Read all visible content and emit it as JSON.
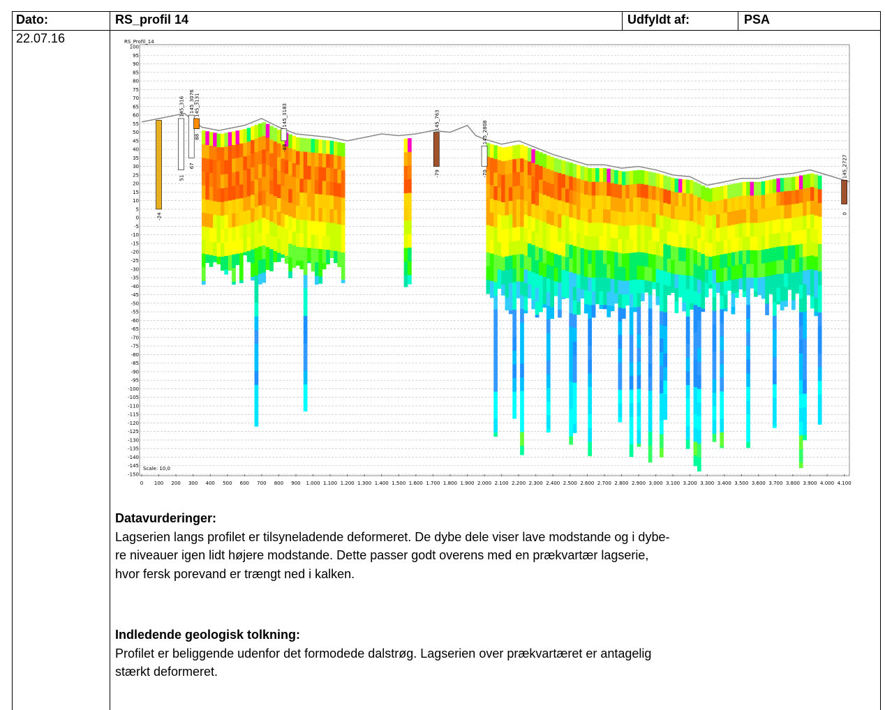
{
  "header": {
    "date_label": "Dato:",
    "profile": "RS_profil 14",
    "filled_by_label": "Udfyldt af:",
    "filled_by": "PSA"
  },
  "date": "22.07.16",
  "figure": {
    "title": "RS_Profil_14",
    "scale_label": "Scale: 10,0",
    "xlim": [
      0,
      4130
    ],
    "ylim": [
      -150,
      100
    ],
    "xticks": [
      0,
      100,
      200,
      300,
      400,
      500,
      600,
      700,
      800,
      900,
      {
        "value": 1000,
        "label": "1.000"
      },
      {
        "value": 1100,
        "label": "1.100"
      },
      {
        "value": 1200,
        "label": "1.200"
      },
      {
        "value": 1300,
        "label": "1.300"
      },
      {
        "value": 1400,
        "label": "1.400"
      },
      {
        "value": 1500,
        "label": "1.500"
      },
      {
        "value": 1600,
        "label": "1.600"
      },
      {
        "value": 1700,
        "label": "1.700"
      },
      {
        "value": 1800,
        "label": "1.800"
      },
      {
        "value": 1900,
        "label": "1.900"
      },
      {
        "value": 2000,
        "label": "2.000"
      },
      {
        "value": 2100,
        "label": "2.100"
      },
      {
        "value": 2200,
        "label": "2.200"
      },
      {
        "value": 2300,
        "label": "2.300"
      },
      {
        "value": 2400,
        "label": "2.400"
      },
      {
        "value": 2500,
        "label": "2.500"
      },
      {
        "value": 2600,
        "label": "2.600"
      },
      {
        "value": 2700,
        "label": "2.700"
      },
      {
        "value": 2800,
        "label": "2.800"
      },
      {
        "value": 2900,
        "label": "2.900"
      },
      {
        "value": 3000,
        "label": "3.000"
      },
      {
        "value": 3100,
        "label": "3.100"
      },
      {
        "value": 3200,
        "label": "3.200"
      },
      {
        "value": 3300,
        "label": "3.300"
      },
      {
        "value": 3400,
        "label": "3.400"
      },
      {
        "value": 3500,
        "label": "3.500"
      },
      {
        "value": 3600,
        "label": "3.600"
      },
      {
        "value": 3700,
        "label": "3.700"
      },
      {
        "value": 3800,
        "label": "3.800"
      },
      {
        "value": 3900,
        "label": "3.900"
      },
      {
        "value": 4000,
        "label": "4.000"
      },
      {
        "value": 4100,
        "label": "4.100"
      }
    ],
    "yticks": [
      100,
      95,
      90,
      85,
      80,
      75,
      70,
      65,
      60,
      55,
      50,
      45,
      40,
      35,
      30,
      25,
      20,
      15,
      10,
      5,
      0,
      -5,
      -10,
      -15,
      -20,
      -25,
      -30,
      -35,
      -40,
      -45,
      -50,
      -55,
      -60,
      -65,
      -70,
      -75,
      -80,
      -85,
      -90,
      -95,
      -100,
      -105,
      -110,
      -115,
      -120,
      -125,
      -130,
      -135,
      -140,
      -145,
      -150
    ],
    "boreholes": [
      {
        "depth_label": "-24"
      },
      {
        "label": "145_316",
        "depth_label": "51"
      },
      {
        "label": "145_3076",
        "depth_label": "67"
      },
      {
        "label": "145_3131",
        "depth_label": "88"
      },
      {
        "label": "145_3183",
        "depth_label": "-88"
      },
      {
        "label": "145_763",
        "depth_label": "-79"
      },
      {
        "label": "145_2808",
        "depth_label": "-70"
      },
      {
        "label": "145_2727",
        "depth_label": "0"
      }
    ]
  },
  "sections": [
    {
      "heading": "Datavurderinger:",
      "lines": [
        "Lagserien langs profilet er tilsyneladende deformeret. De dybe dele viser lave modstande og i dybe-",
        "re niveauer igen lidt højere modstande. Dette passer godt overens med en prækvartær lagserie,",
        "hvor fersk porevand er trængt ned i kalken."
      ]
    },
    {
      "heading": "Indledende geologisk tolkning:",
      "lines": [
        "Profilet er beliggende udenfor det formodede dalstrøg. Lagserien over prækvartæret er antagelig",
        "stærkt deformeret."
      ]
    }
  ]
}
